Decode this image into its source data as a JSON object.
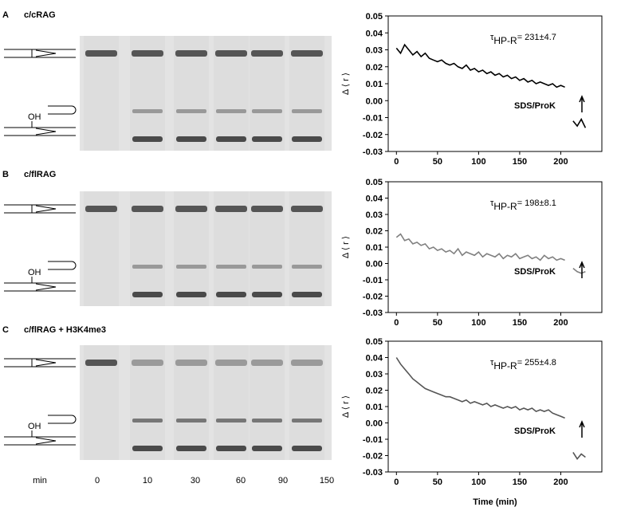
{
  "panels": [
    {
      "letter": "A",
      "label": "c/cRAG",
      "diagram_label": "OH"
    },
    {
      "letter": "B",
      "label": "c/flRAG",
      "diagram_label": "OH"
    },
    {
      "letter": "C",
      "label": "c/flRAG + H3K4me3",
      "diagram_label": "OH"
    }
  ],
  "gel": {
    "time_label": "min",
    "lanes": [
      "0",
      "10",
      "30",
      "60",
      "90",
      "150"
    ]
  },
  "chart_data": [
    {
      "type": "line",
      "color": "#000000",
      "annotation": {
        "symbol": "τ",
        "subscript": "HP-R",
        "text": "= 231±4.7"
      },
      "marker_label": "SDS/ProK",
      "y_label": "Δ ⟨ r ⟩",
      "x": [
        0,
        5,
        10,
        15,
        20,
        25,
        30,
        35,
        40,
        45,
        50,
        55,
        60,
        65,
        70,
        75,
        80,
        85,
        90,
        95,
        100,
        105,
        110,
        115,
        120,
        125,
        130,
        135,
        140,
        145,
        150,
        155,
        160,
        165,
        170,
        175,
        180,
        185,
        190,
        195,
        200,
        205,
        210,
        215,
        220,
        225,
        230
      ],
      "values": [
        0.031,
        0.028,
        0.033,
        0.03,
        0.027,
        0.029,
        0.026,
        0.028,
        0.025,
        0.024,
        0.023,
        0.024,
        0.022,
        0.021,
        0.022,
        0.02,
        0.019,
        0.021,
        0.018,
        0.019,
        0.017,
        0.018,
        0.016,
        0.017,
        0.015,
        0.016,
        0.014,
        0.015,
        0.013,
        0.014,
        0.012,
        0.013,
        0.011,
        0.012,
        0.01,
        0.011,
        0.01,
        0.009,
        0.01,
        0.008,
        0.009,
        0.008,
        null,
        -0.012,
        -0.015,
        -0.011,
        -0.016
      ],
      "xlim": [
        -10,
        250
      ],
      "ylim": [
        -0.03,
        0.05
      ],
      "xticks": [
        0,
        50,
        100,
        150,
        200
      ],
      "yticks": [
        -0.03,
        -0.02,
        -0.01,
        {
          "value": 0,
          "label": "0.00"
        },
        0.01,
        0.02,
        0.03,
        0.04,
        0.05
      ]
    },
    {
      "type": "line",
      "color": "#808080",
      "annotation": {
        "symbol": "τ",
        "subscript": "HP-R",
        "text": "= 198±8.1"
      },
      "marker_label": "SDS/ProK",
      "y_label": "Δ ⟨ r ⟩",
      "x": [
        0,
        5,
        10,
        15,
        20,
        25,
        30,
        35,
        40,
        45,
        50,
        55,
        60,
        65,
        70,
        75,
        80,
        85,
        90,
        95,
        100,
        105,
        110,
        115,
        120,
        125,
        130,
        135,
        140,
        145,
        150,
        155,
        160,
        165,
        170,
        175,
        180,
        185,
        190,
        195,
        200,
        205,
        210,
        215,
        220,
        225,
        230
      ],
      "values": [
        0.016,
        0.018,
        0.014,
        0.015,
        0.012,
        0.013,
        0.011,
        0.012,
        0.009,
        0.01,
        0.008,
        0.009,
        0.007,
        0.008,
        0.006,
        0.009,
        0.005,
        0.007,
        0.006,
        0.005,
        0.007,
        0.004,
        0.006,
        0.005,
        0.004,
        0.006,
        0.003,
        0.005,
        0.004,
        0.006,
        0.003,
        0.004,
        0.005,
        0.003,
        0.004,
        0.002,
        0.005,
        0.003,
        0.004,
        0.002,
        0.003,
        0.002,
        null,
        -0.003,
        -0.005,
        -0.006,
        -0.005
      ],
      "xlim": [
        -10,
        250
      ],
      "ylim": [
        -0.03,
        0.05
      ],
      "xticks": [
        0,
        50,
        100,
        150,
        200
      ],
      "yticks": [
        -0.03,
        -0.02,
        -0.01,
        {
          "value": 0,
          "label": "0.00"
        },
        0.01,
        0.02,
        0.03,
        0.04,
        0.05
      ]
    },
    {
      "type": "line",
      "color": "#555555",
      "annotation": {
        "symbol": "τ",
        "subscript": "HP-R",
        "text": "= 255±4.8"
      },
      "marker_label": "SDS/ProK",
      "y_label": "Δ ⟨ r ⟩",
      "x_label": "Time (min)",
      "x": [
        0,
        5,
        10,
        15,
        20,
        25,
        30,
        35,
        40,
        45,
        50,
        55,
        60,
        65,
        70,
        75,
        80,
        85,
        90,
        95,
        100,
        105,
        110,
        115,
        120,
        125,
        130,
        135,
        140,
        145,
        150,
        155,
        160,
        165,
        170,
        175,
        180,
        185,
        190,
        195,
        200,
        205,
        210,
        215,
        220,
        225,
        230
      ],
      "values": [
        0.04,
        0.036,
        0.033,
        0.03,
        0.027,
        0.025,
        0.023,
        0.021,
        0.02,
        0.019,
        0.018,
        0.017,
        0.016,
        0.016,
        0.015,
        0.014,
        0.013,
        0.014,
        0.012,
        0.013,
        0.012,
        0.011,
        0.012,
        0.01,
        0.011,
        0.01,
        0.009,
        0.01,
        0.009,
        0.01,
        0.008,
        0.009,
        0.008,
        0.009,
        0.007,
        0.008,
        0.007,
        0.008,
        0.006,
        0.005,
        0.004,
        0.003,
        null,
        -0.018,
        -0.022,
        -0.019,
        -0.021
      ],
      "xlim": [
        -10,
        250
      ],
      "ylim": [
        -0.03,
        0.05
      ],
      "xticks": [
        0,
        50,
        100,
        150,
        200
      ],
      "yticks": [
        -0.03,
        -0.02,
        -0.01,
        {
          "value": 0,
          "label": "0.00"
        },
        0.01,
        0.02,
        0.03,
        0.04,
        0.05
      ]
    }
  ]
}
